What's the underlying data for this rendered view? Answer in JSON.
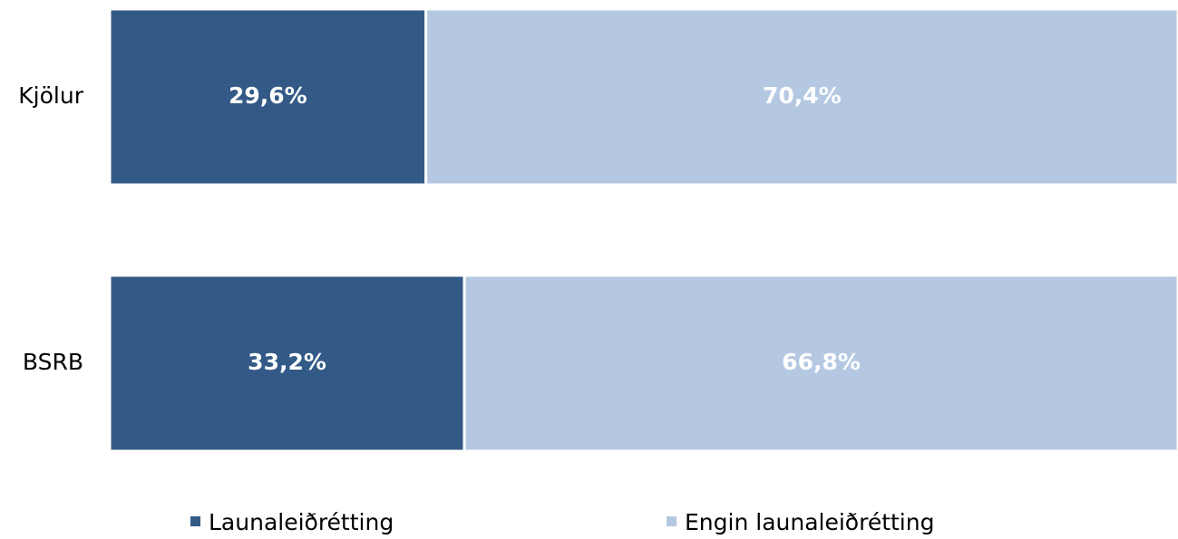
{
  "chart_data": {
    "type": "stacked-bar-horizontal",
    "categories": [
      "Kjölur",
      "BSRB"
    ],
    "series": [
      {
        "name": "Launaleiðrétting",
        "color": "#335a87",
        "values": [
          29.6,
          33.2
        ],
        "value_labels": [
          "29,6%",
          "33,2%"
        ]
      },
      {
        "name": "Engin launaleiðrétting",
        "color": "#b4c8e2",
        "values": [
          70.4,
          66.8
        ],
        "value_labels": [
          "70,4%",
          "66,8%"
        ]
      }
    ],
    "xlim": [
      0,
      100
    ],
    "legend": "bottom"
  }
}
